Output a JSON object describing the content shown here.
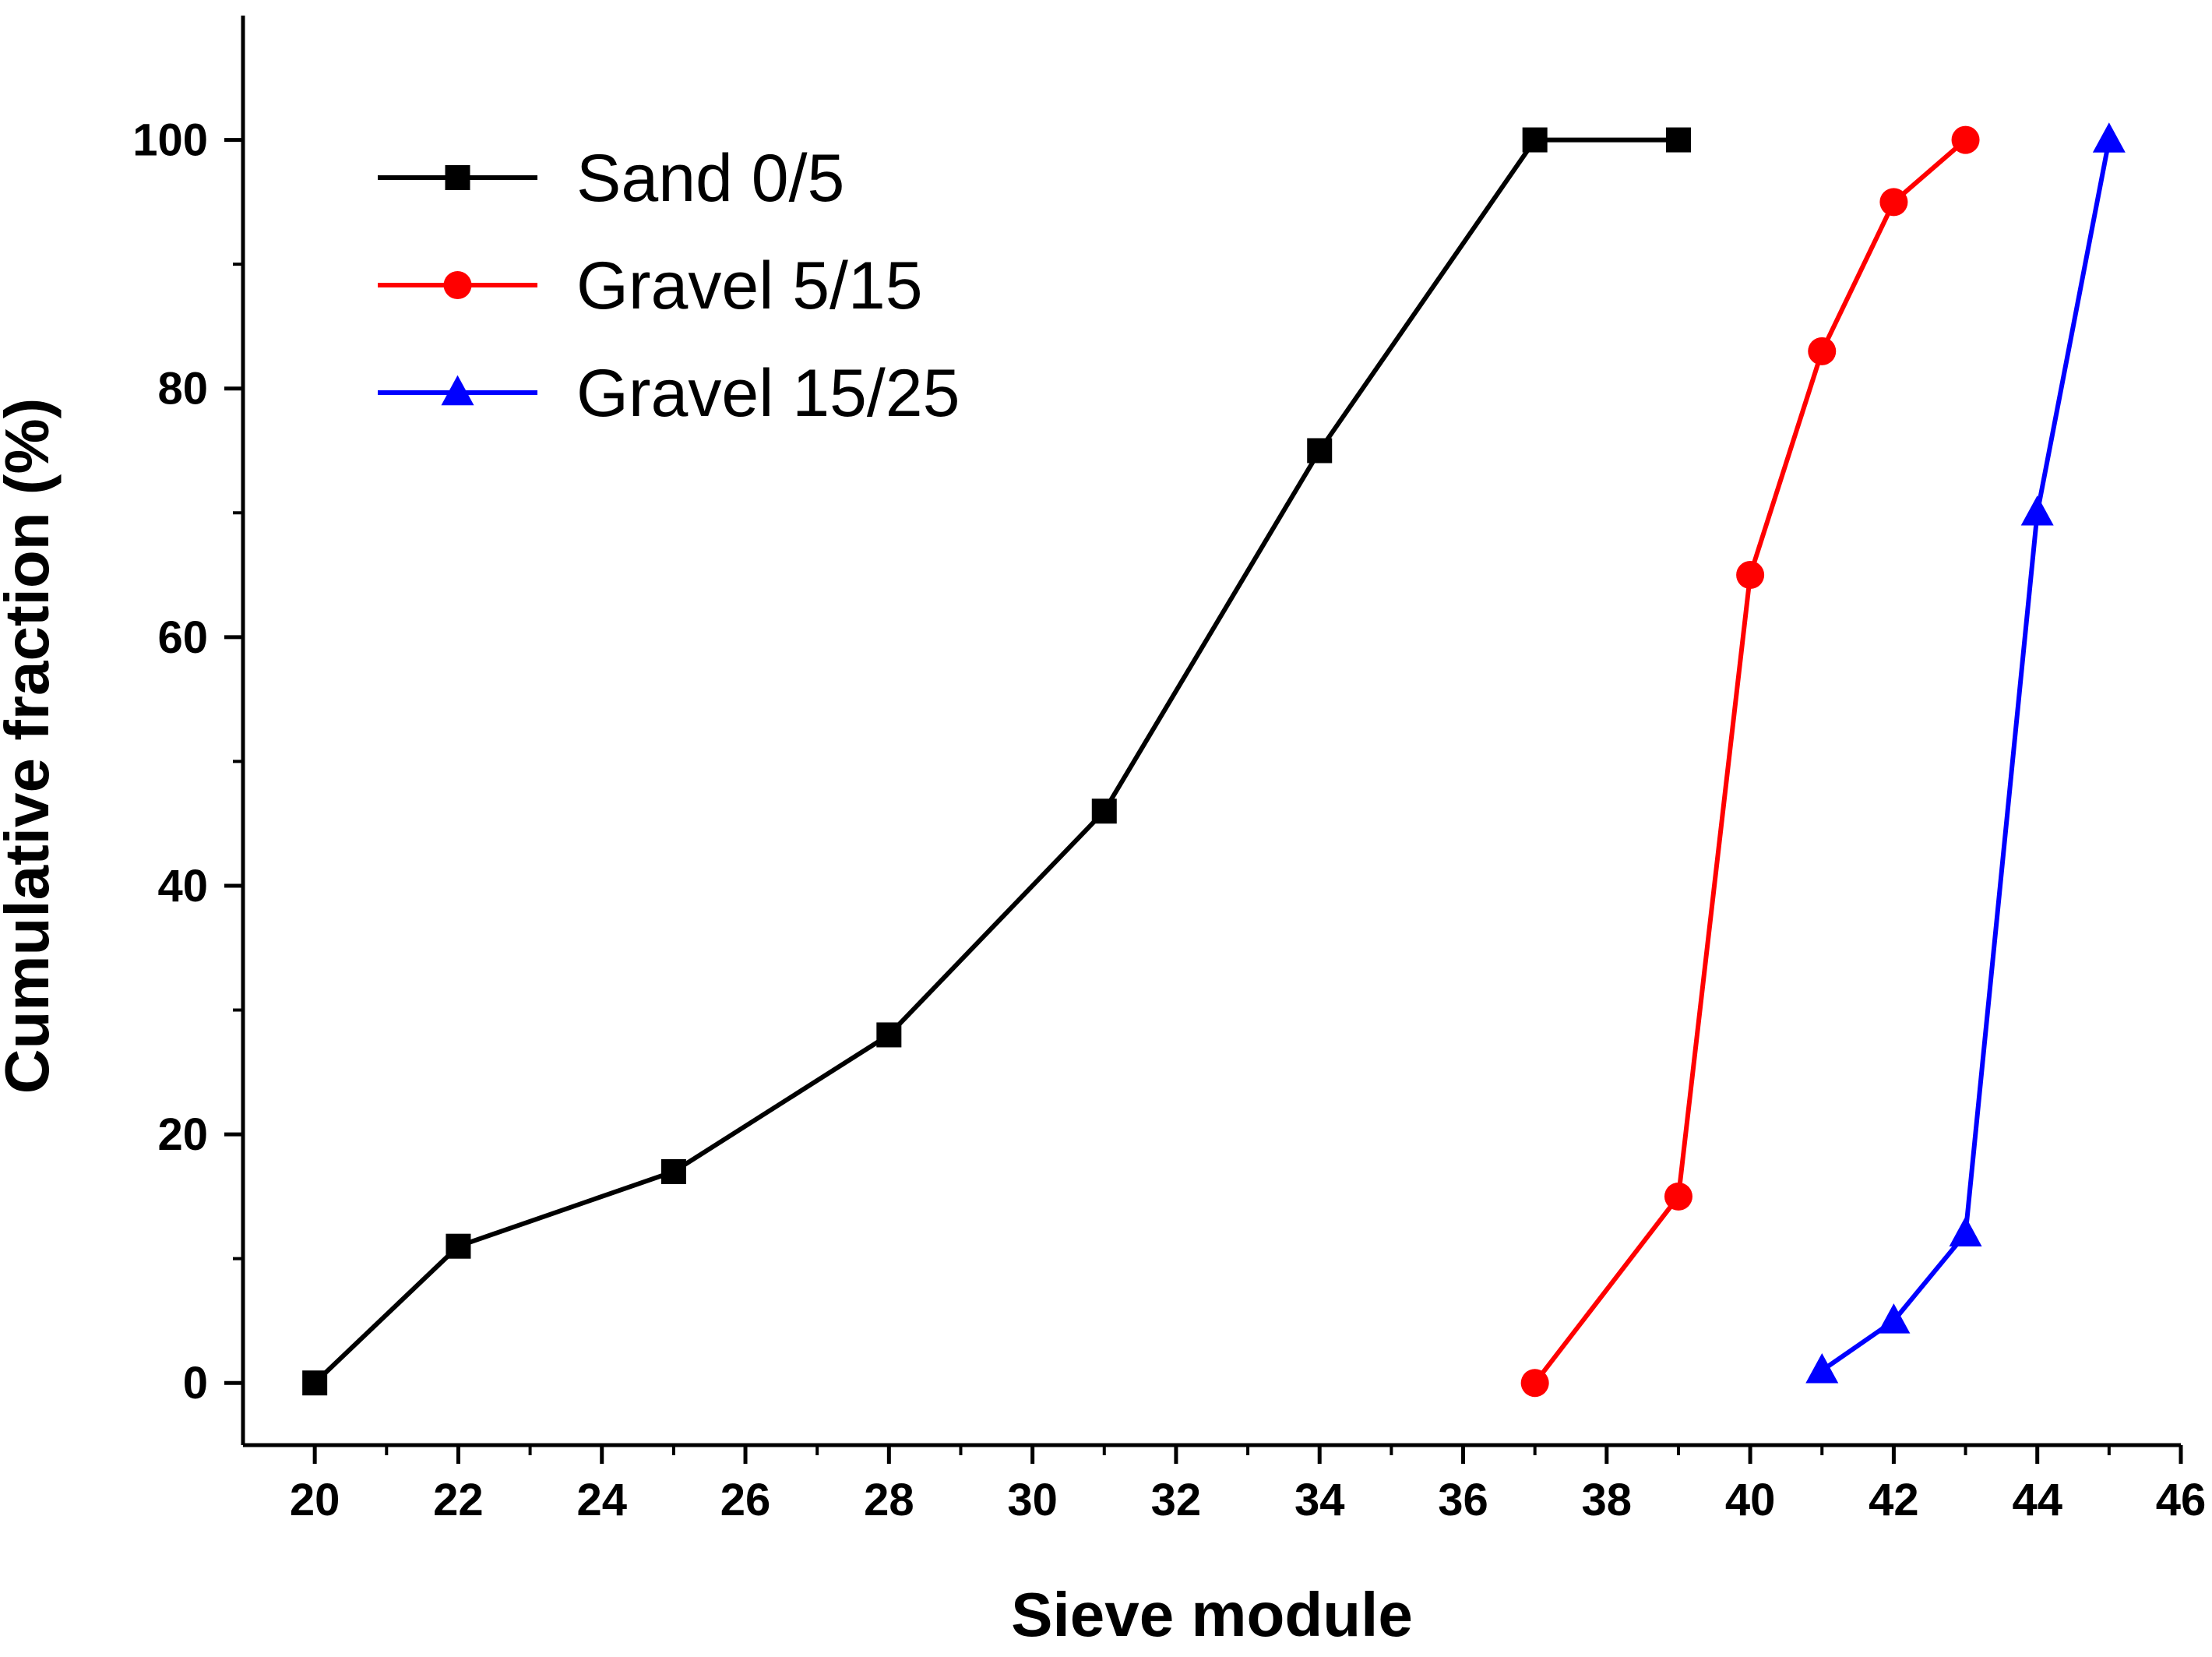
{
  "chart_data": {
    "type": "line",
    "title": "",
    "xlabel": "Sieve module",
    "ylabel": "Cumulative fraction (%)",
    "xlim": [
      19,
      46
    ],
    "ylim": [
      -5,
      110
    ],
    "x_major_ticks": [
      20,
      22,
      24,
      26,
      28,
      30,
      32,
      34,
      36,
      38,
      40,
      42,
      44,
      46
    ],
    "x_tick_labels": [
      "20",
      "22",
      "24",
      "26",
      "28",
      "30",
      "32",
      "34",
      "36",
      "38",
      "40",
      "42",
      "44",
      "46"
    ],
    "x_minor_ticks": [
      21,
      23,
      25,
      27,
      29,
      31,
      33,
      35,
      37,
      39,
      41,
      43,
      45
    ],
    "y_major_ticks": [
      0,
      20,
      40,
      60,
      80,
      100
    ],
    "y_tick_labels": [
      "0",
      "20",
      "40",
      "60",
      "80",
      "100"
    ],
    "y_minor_ticks": [
      10,
      30,
      50,
      70,
      90
    ],
    "grid": false,
    "legend_position": "top-left",
    "series": [
      {
        "name": "Sand 0/5",
        "color": "#000000",
        "marker": "square",
        "x": [
          20,
          22,
          25,
          28,
          31,
          34,
          37,
          39
        ],
        "y": [
          0,
          11,
          17,
          28,
          46,
          75,
          100,
          100
        ]
      },
      {
        "name": "Gravel 5/15",
        "color": "#ff0000",
        "marker": "circle",
        "x": [
          37,
          39,
          40,
          41,
          42,
          43
        ],
        "y": [
          0,
          15,
          65,
          83,
          95,
          100
        ]
      },
      {
        "name": "Gravel 15/25",
        "color": "#0000ff",
        "marker": "triangle",
        "x": [
          41,
          42,
          43,
          44,
          45
        ],
        "y": [
          1,
          5,
          12,
          70,
          100
        ]
      }
    ]
  }
}
